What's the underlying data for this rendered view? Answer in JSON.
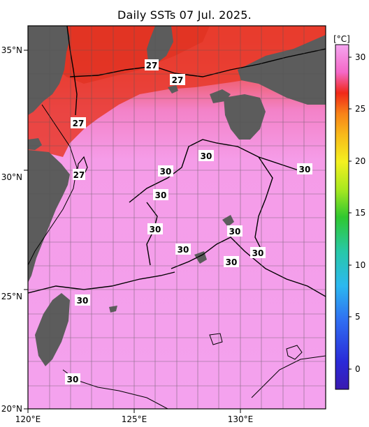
{
  "title": "Daily SSTs 07 Jul. 2025.",
  "map": {
    "lat_ticks": [
      "35°N",
      "30°N",
      "25°N",
      "20°N"
    ],
    "lon_ticks": [
      "120°E",
      "125°E",
      "130°E"
    ]
  },
  "isotherm_labels": [
    "27",
    "27",
    "27",
    "27",
    "30",
    "30",
    "30",
    "30",
    "30",
    "30",
    "30",
    "30",
    "30",
    "30",
    "30",
    "30"
  ],
  "colorbar": {
    "unit": "[°C]",
    "ticks": [
      "30",
      "25",
      "20",
      "15",
      "10",
      "5",
      "0"
    ]
  }
}
